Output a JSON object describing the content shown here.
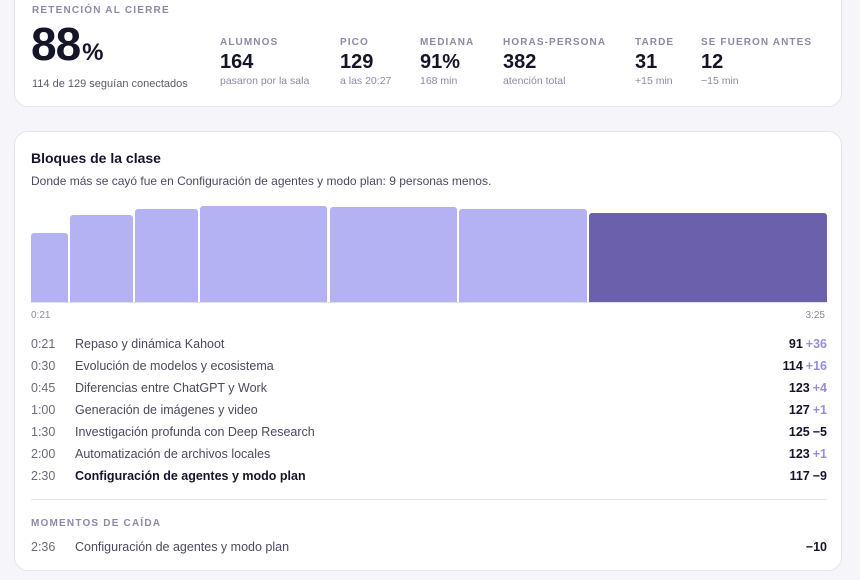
{
  "retention": {
    "label": "RETENCIÓN AL CIERRE",
    "value": "88",
    "unit": "%",
    "subtitle": "114 de 129 seguían conectados"
  },
  "stats": [
    {
      "label": "ALUMNOS",
      "value": "164",
      "sub": "pasaron por la sala"
    },
    {
      "label": "PICO",
      "value": "129",
      "sub": "a las 20:27"
    },
    {
      "label": "MEDIANA",
      "value": "91%",
      "sub": "168 min"
    },
    {
      "label": "HORAS-PERSONA",
      "value": "382",
      "sub": "atención total"
    },
    {
      "label": "TARDE",
      "value": "31",
      "sub": "+15 min"
    },
    {
      "label": "SE FUERON ANTES",
      "value": "12",
      "sub": "−15 min"
    }
  ],
  "blocks": {
    "title": "Bloques de la clase",
    "subtitle": "Donde más se cayó fue en Configuración de agentes y modo plan: 9 personas menos.",
    "axis_start": "0:21",
    "axis_end": "3:25",
    "max_value": 129,
    "rows": [
      {
        "time": "0:21",
        "name": "Repaso y dinámica Kahoot",
        "value": 91,
        "value_label": "91",
        "delta": "+36",
        "delta_sign": "pos",
        "start_min": 21,
        "end_min": 30
      },
      {
        "time": "0:30",
        "name": "Evolución de modelos y ecosistema",
        "value": 114,
        "value_label": "114",
        "delta": "+16",
        "delta_sign": "pos",
        "start_min": 30,
        "end_min": 45
      },
      {
        "time": "0:45",
        "name": "Diferencias entre ChatGPT y Work",
        "value": 123,
        "value_label": "123",
        "delta": "+4",
        "delta_sign": "pos",
        "start_min": 45,
        "end_min": 60
      },
      {
        "time": "1:00",
        "name": "Generación de imágenes y video",
        "value": 127,
        "value_label": "127",
        "delta": "+1",
        "delta_sign": "pos",
        "start_min": 60,
        "end_min": 90
      },
      {
        "time": "1:30",
        "name": "Investigación profunda con Deep Research",
        "value": 125,
        "value_label": "125",
        "delta": "−5",
        "delta_sign": "neg",
        "start_min": 90,
        "end_min": 120
      },
      {
        "time": "2:00",
        "name": "Automatización de archivos locales",
        "value": 123,
        "value_label": "123",
        "delta": "+1",
        "delta_sign": "pos",
        "start_min": 120,
        "end_min": 150
      },
      {
        "time": "2:30",
        "name": "Configuración de agentes y modo plan",
        "value": 117,
        "value_label": "117",
        "delta": "−9",
        "delta_sign": "neg",
        "start_min": 150,
        "end_min": 205,
        "highlight": true
      }
    ]
  },
  "drops": {
    "label": "MOMENTOS DE CAÍDA",
    "items": [
      {
        "time": "2:36",
        "name": "Configuración de agentes y modo plan",
        "value": "−10"
      }
    ]
  },
  "colors": {
    "bar": "#b4b2f2",
    "bar_highlight": "#6a60ac",
    "delta_positive": "#9490d8"
  }
}
